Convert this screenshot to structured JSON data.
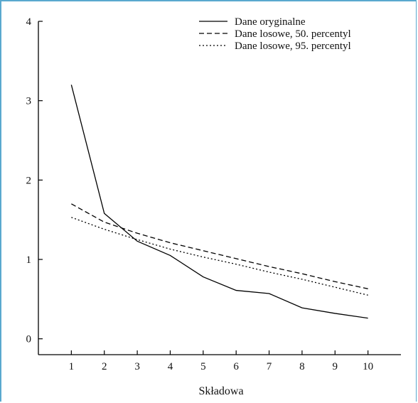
{
  "chart_data": {
    "type": "line",
    "xlabel": "Składowa",
    "ylabel": "",
    "x": [
      1,
      2,
      3,
      4,
      5,
      6,
      7,
      8,
      9,
      10
    ],
    "xlim": [
      0,
      11
    ],
    "ylim": [
      -0.2,
      4
    ],
    "xticks": [
      1,
      2,
      3,
      4,
      5,
      6,
      7,
      8,
      9,
      10
    ],
    "yticks": [
      0,
      1,
      2,
      3,
      4
    ],
    "grid": false,
    "legend_position": "top-right",
    "series": [
      {
        "name": "Dane oryginalne",
        "style": "solid",
        "values": [
          3.2,
          1.58,
          1.23,
          1.05,
          0.78,
          0.61,
          0.57,
          0.39,
          0.32,
          0.26
        ]
      },
      {
        "name": "Dane losowe, 50. percentyl",
        "style": "dashed",
        "values": [
          1.7,
          1.47,
          1.33,
          1.21,
          1.11,
          1.01,
          0.91,
          0.82,
          0.72,
          0.63
        ]
      },
      {
        "name": "Dane losowe, 95. percentyl",
        "style": "dotted",
        "values": [
          1.53,
          1.38,
          1.25,
          1.13,
          1.03,
          0.94,
          0.84,
          0.75,
          0.65,
          0.55
        ]
      }
    ],
    "line_color": "#000000"
  }
}
